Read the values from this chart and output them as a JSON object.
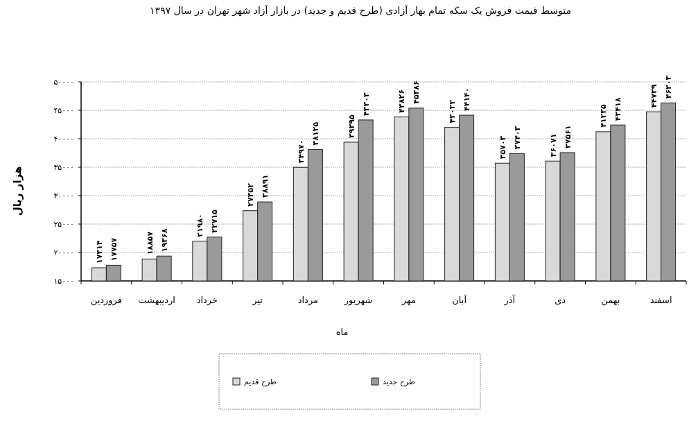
{
  "chart_data": {
    "type": "bar",
    "title": "متوسط قیمت فروش یک سکه تمام بهار آزادی (طرح قدیم و جدید) در بازار آزاد شهر تهران در سال ۱۳۹۷",
    "xlabel": "ماه",
    "ylabel": "هزار ریال",
    "categories": [
      "فروردین",
      "اردیبهشت",
      "خرداد",
      "تیر",
      "مرداد",
      "شهریور",
      "مهر",
      "آبان",
      "آذر",
      "دی",
      "بهمن",
      "اسفند"
    ],
    "series": [
      {
        "name": "طرح قدیم",
        "color": "#d9d9d9",
        "values": [
          17314,
          18857,
          21980,
          27352,
          34970,
          39395,
          43826,
          42022,
          35703,
          36071,
          41235,
          44739
        ],
        "value_labels": [
          "۱۷۳۱۴",
          "۱۸۸۵۷",
          "۲۱۹۸۰",
          "۲۷۳۵۲",
          "۳۴۹۷۰",
          "۳۹۳۹۵",
          "۴۳۸۲۶",
          "۴۲۰۲۲",
          "۳۵۷۰۳",
          "۳۶۰۷۱",
          "۴۱۲۳۵",
          "۴۴۷۳۹"
        ]
      },
      {
        "name": "طرح جدید",
        "color": "#9a9a9a",
        "values": [
          17757,
          19368,
          22715,
          28891,
          38125,
          43303,
          45386,
          44140,
          37403,
          37561,
          42418,
          46303
        ],
        "value_labels": [
          "۱۷۷۵۷",
          "۱۹۳۶۸",
          "۲۲۷۱۵",
          "۲۸۸۹۱",
          "۳۸۱۲۵",
          "۴۳۳۰۳",
          "۴۵۳۸۶",
          "۴۴۱۴۰",
          "۳۷۴۰۳",
          "۳۷۵۶۱",
          "۴۲۴۱۸",
          "۴۶۳۰۳"
        ]
      }
    ],
    "ylim": [
      15000,
      50000
    ],
    "yticks": [
      {
        "value": 15000,
        "label": "۱۵۰۰۰"
      },
      {
        "value": 20000,
        "label": "۲۰۰۰۰"
      },
      {
        "value": 25000,
        "label": "۲۵۰۰۰"
      },
      {
        "value": 30000,
        "label": "۳۰۰۰۰"
      },
      {
        "value": 35000,
        "label": "۳۵۰۰۰"
      },
      {
        "value": 40000,
        "label": "۴۰۰۰۰"
      },
      {
        "value": 45000,
        "label": "۴۵۰۰۰"
      },
      {
        "value": 50000,
        "label": "۵۰۰۰۰"
      }
    ],
    "grid": "y",
    "legend": "bottom"
  }
}
